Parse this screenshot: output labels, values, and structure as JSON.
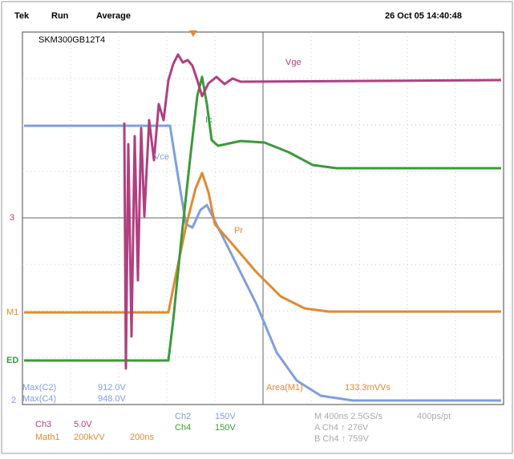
{
  "header": {
    "brand": "Tek",
    "state": "Run",
    "mode": "Average",
    "datetime": "26 Oct 05 14:40:48",
    "device": "SKM300GB12T4"
  },
  "trace_labels": {
    "vge": "Vge",
    "ic": "Ic",
    "vce": "Vce",
    "pr": "Pr"
  },
  "markers": {
    "ch3": "3",
    "math": "M1",
    "ch2": "ED",
    "ch4": "2"
  },
  "measurements": {
    "max_c2_label": "Max(C2)",
    "max_c2_value": "912.0V",
    "max_c4_label": "Max(C4)",
    "max_c4_value": "948.0V",
    "area_label": "Area(M1)",
    "area_value": "133.3mVVs"
  },
  "settings": {
    "ch3": "Ch3",
    "ch3_scale": "5.0V",
    "math": "Math1",
    "math_scale": "200kVV",
    "math_time": "200ns",
    "ch2": "Ch2",
    "ch2_scale": "150V",
    "ch4": "Ch4",
    "ch4_scale": "150V",
    "timebase": "M 400ns 2.5GS/s",
    "record": "400ps/pt",
    "cursor_a": "A Ch4 ↑ 276V",
    "cursor_b": "B Ch4 ↑ 759V"
  }
}
